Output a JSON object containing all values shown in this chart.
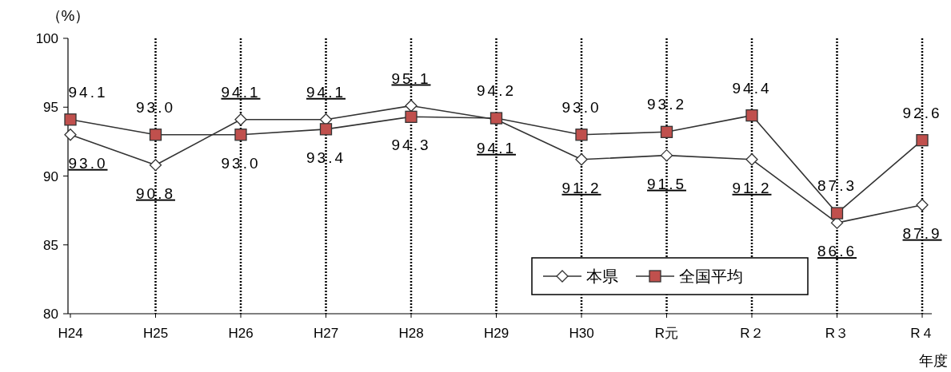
{
  "chart_data": {
    "type": "line",
    "ylabel": "（%）",
    "xlabel": "年度",
    "categories": [
      "H24",
      "H25",
      "H26",
      "H27",
      "H28",
      "H29",
      "H30",
      "R元",
      "R２",
      "R３",
      "R４"
    ],
    "series": [
      {
        "name": "本県",
        "color": "#ffffff",
        "marker": "diamond",
        "values": [
          93.0,
          90.8,
          94.1,
          94.1,
          95.1,
          94.1,
          91.2,
          91.5,
          91.2,
          86.6,
          87.9
        ],
        "value_labels": [
          "93.0",
          "90.8",
          "94.1",
          "94.1",
          "95.1",
          "94.1",
          "91.2",
          "91.5",
          "91.2",
          "86.6",
          "87.9"
        ]
      },
      {
        "name": "全国平均",
        "color": "#c0504d",
        "marker": "square",
        "values": [
          94.1,
          93.0,
          93.0,
          93.4,
          94.3,
          94.2,
          93.0,
          93.2,
          94.4,
          87.3,
          92.6
        ],
        "value_labels": [
          "94.1",
          "93.0",
          "93.0",
          "93.4",
          "94.3",
          "94.2",
          "93.0",
          "93.2",
          "94.4",
          "87.3",
          "92.6"
        ]
      }
    ],
    "ylim": [
      80,
      100
    ],
    "yticks": [
      80,
      85,
      90,
      95,
      100
    ],
    "grid": "x",
    "legend": "bottom right"
  }
}
